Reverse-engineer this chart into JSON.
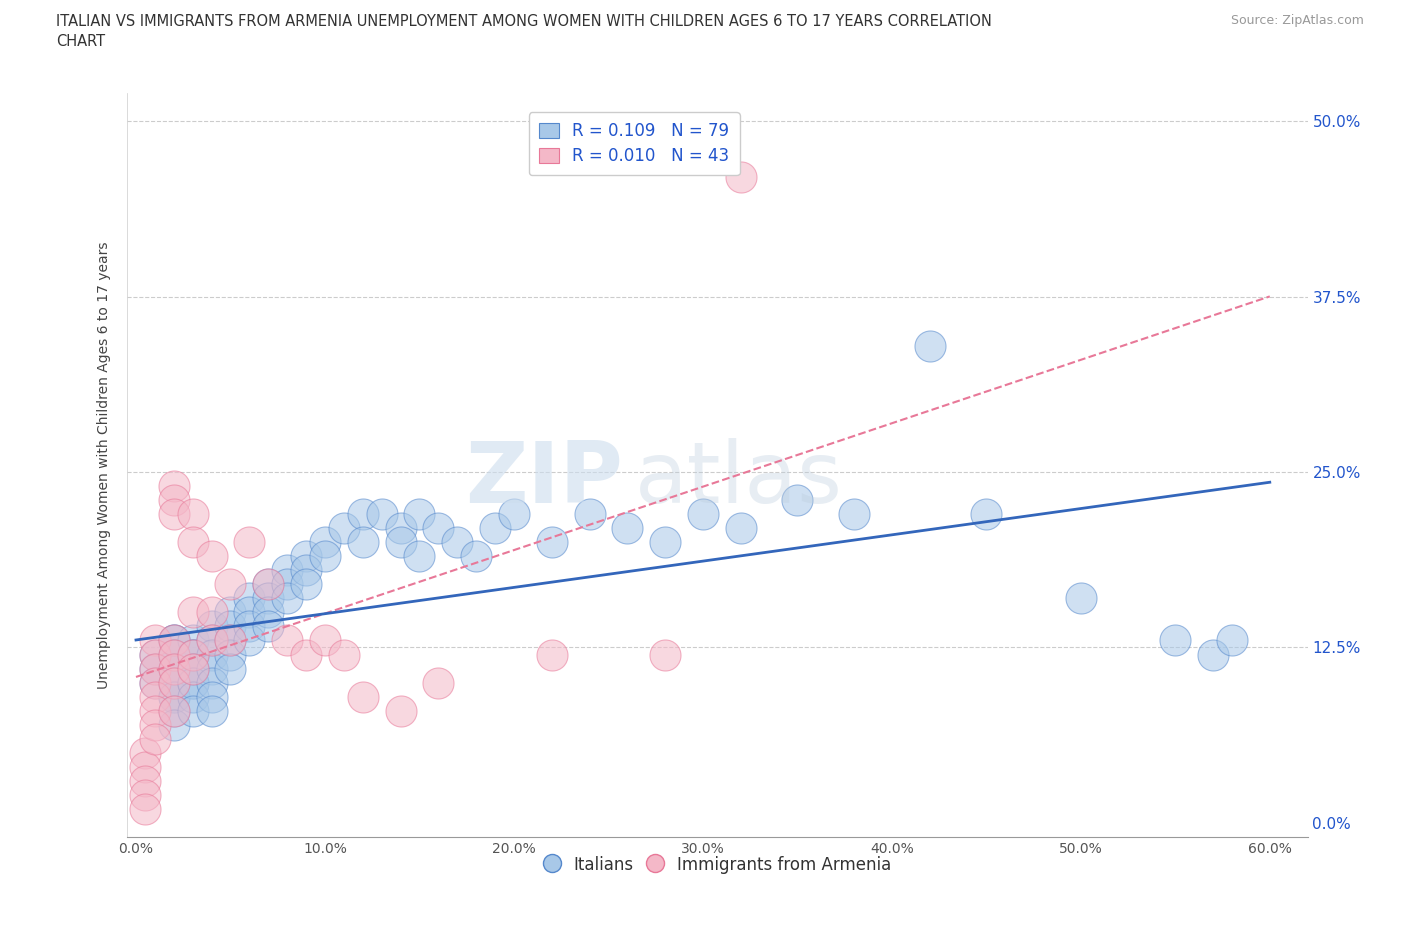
{
  "title_line1": "ITALIAN VS IMMIGRANTS FROM ARMENIA UNEMPLOYMENT AMONG WOMEN WITH CHILDREN AGES 6 TO 17 YEARS CORRELATION",
  "title_line2": "CHART",
  "source": "Source: ZipAtlas.com",
  "ylabel": "Unemployment Among Women with Children Ages 6 to 17 years",
  "xlabel_ticks": [
    "0.0%",
    "10.0%",
    "20.0%",
    "30.0%",
    "40.0%",
    "50.0%",
    "60.0%"
  ],
  "xlabel_vals": [
    0.0,
    0.1,
    0.2,
    0.3,
    0.4,
    0.5,
    0.6
  ],
  "ylabel_ticks": [
    "0.0%",
    "12.5%",
    "25.0%",
    "37.5%",
    "50.0%"
  ],
  "ylabel_vals": [
    0.0,
    0.125,
    0.25,
    0.375,
    0.5
  ],
  "xlim": [
    -0.005,
    0.62
  ],
  "ylim": [
    -0.01,
    0.52
  ],
  "blue_color": "#a8c8e8",
  "pink_color": "#f4b8c8",
  "blue_edge": "#5588cc",
  "pink_edge": "#e87898",
  "trend_blue": "#3366bb",
  "trend_pink": "#e87898",
  "R_blue": 0.109,
  "N_blue": 79,
  "R_pink": 0.01,
  "N_pink": 43,
  "legend_R_color": "#2255cc",
  "grid_color": "#cccccc",
  "watermark_zip": "ZIP",
  "watermark_atlas": "atlas",
  "italians_x": [
    0.01,
    0.01,
    0.01,
    0.02,
    0.02,
    0.02,
    0.02,
    0.02,
    0.02,
    0.02,
    0.02,
    0.02,
    0.02,
    0.02,
    0.02,
    0.03,
    0.03,
    0.03,
    0.03,
    0.03,
    0.03,
    0.03,
    0.03,
    0.03,
    0.04,
    0.04,
    0.04,
    0.04,
    0.04,
    0.04,
    0.04,
    0.05,
    0.05,
    0.05,
    0.05,
    0.05,
    0.06,
    0.06,
    0.06,
    0.06,
    0.07,
    0.07,
    0.07,
    0.07,
    0.08,
    0.08,
    0.08,
    0.09,
    0.09,
    0.09,
    0.1,
    0.1,
    0.11,
    0.12,
    0.12,
    0.13,
    0.14,
    0.14,
    0.15,
    0.15,
    0.16,
    0.17,
    0.18,
    0.19,
    0.2,
    0.22,
    0.24,
    0.26,
    0.28,
    0.3,
    0.32,
    0.35,
    0.38,
    0.42,
    0.45,
    0.5,
    0.55,
    0.57,
    0.58
  ],
  "italians_y": [
    0.12,
    0.11,
    0.1,
    0.13,
    0.12,
    0.11,
    0.1,
    0.09,
    0.13,
    0.12,
    0.11,
    0.1,
    0.09,
    0.08,
    0.07,
    0.13,
    0.12,
    0.11,
    0.1,
    0.12,
    0.11,
    0.1,
    0.09,
    0.08,
    0.14,
    0.13,
    0.12,
    0.11,
    0.1,
    0.09,
    0.08,
    0.15,
    0.14,
    0.13,
    0.12,
    0.11,
    0.16,
    0.15,
    0.14,
    0.13,
    0.17,
    0.16,
    0.15,
    0.14,
    0.18,
    0.17,
    0.16,
    0.19,
    0.18,
    0.17,
    0.2,
    0.19,
    0.21,
    0.22,
    0.2,
    0.22,
    0.21,
    0.2,
    0.22,
    0.19,
    0.21,
    0.2,
    0.19,
    0.21,
    0.22,
    0.2,
    0.22,
    0.21,
    0.2,
    0.22,
    0.21,
    0.23,
    0.22,
    0.34,
    0.22,
    0.16,
    0.13,
    0.12,
    0.13
  ],
  "armenia_x": [
    0.005,
    0.005,
    0.005,
    0.005,
    0.005,
    0.01,
    0.01,
    0.01,
    0.01,
    0.01,
    0.01,
    0.01,
    0.01,
    0.02,
    0.02,
    0.02,
    0.02,
    0.02,
    0.02,
    0.02,
    0.02,
    0.03,
    0.03,
    0.03,
    0.03,
    0.03,
    0.04,
    0.04,
    0.04,
    0.05,
    0.05,
    0.06,
    0.07,
    0.08,
    0.09,
    0.1,
    0.11,
    0.12,
    0.14,
    0.16,
    0.22,
    0.28,
    0.32
  ],
  "armenia_y": [
    0.05,
    0.04,
    0.03,
    0.02,
    0.01,
    0.13,
    0.12,
    0.11,
    0.1,
    0.09,
    0.08,
    0.07,
    0.06,
    0.24,
    0.23,
    0.22,
    0.13,
    0.12,
    0.11,
    0.1,
    0.08,
    0.22,
    0.2,
    0.15,
    0.12,
    0.11,
    0.19,
    0.15,
    0.13,
    0.17,
    0.13,
    0.2,
    0.17,
    0.13,
    0.12,
    0.13,
    0.12,
    0.09,
    0.08,
    0.1,
    0.12,
    0.12,
    0.46
  ]
}
